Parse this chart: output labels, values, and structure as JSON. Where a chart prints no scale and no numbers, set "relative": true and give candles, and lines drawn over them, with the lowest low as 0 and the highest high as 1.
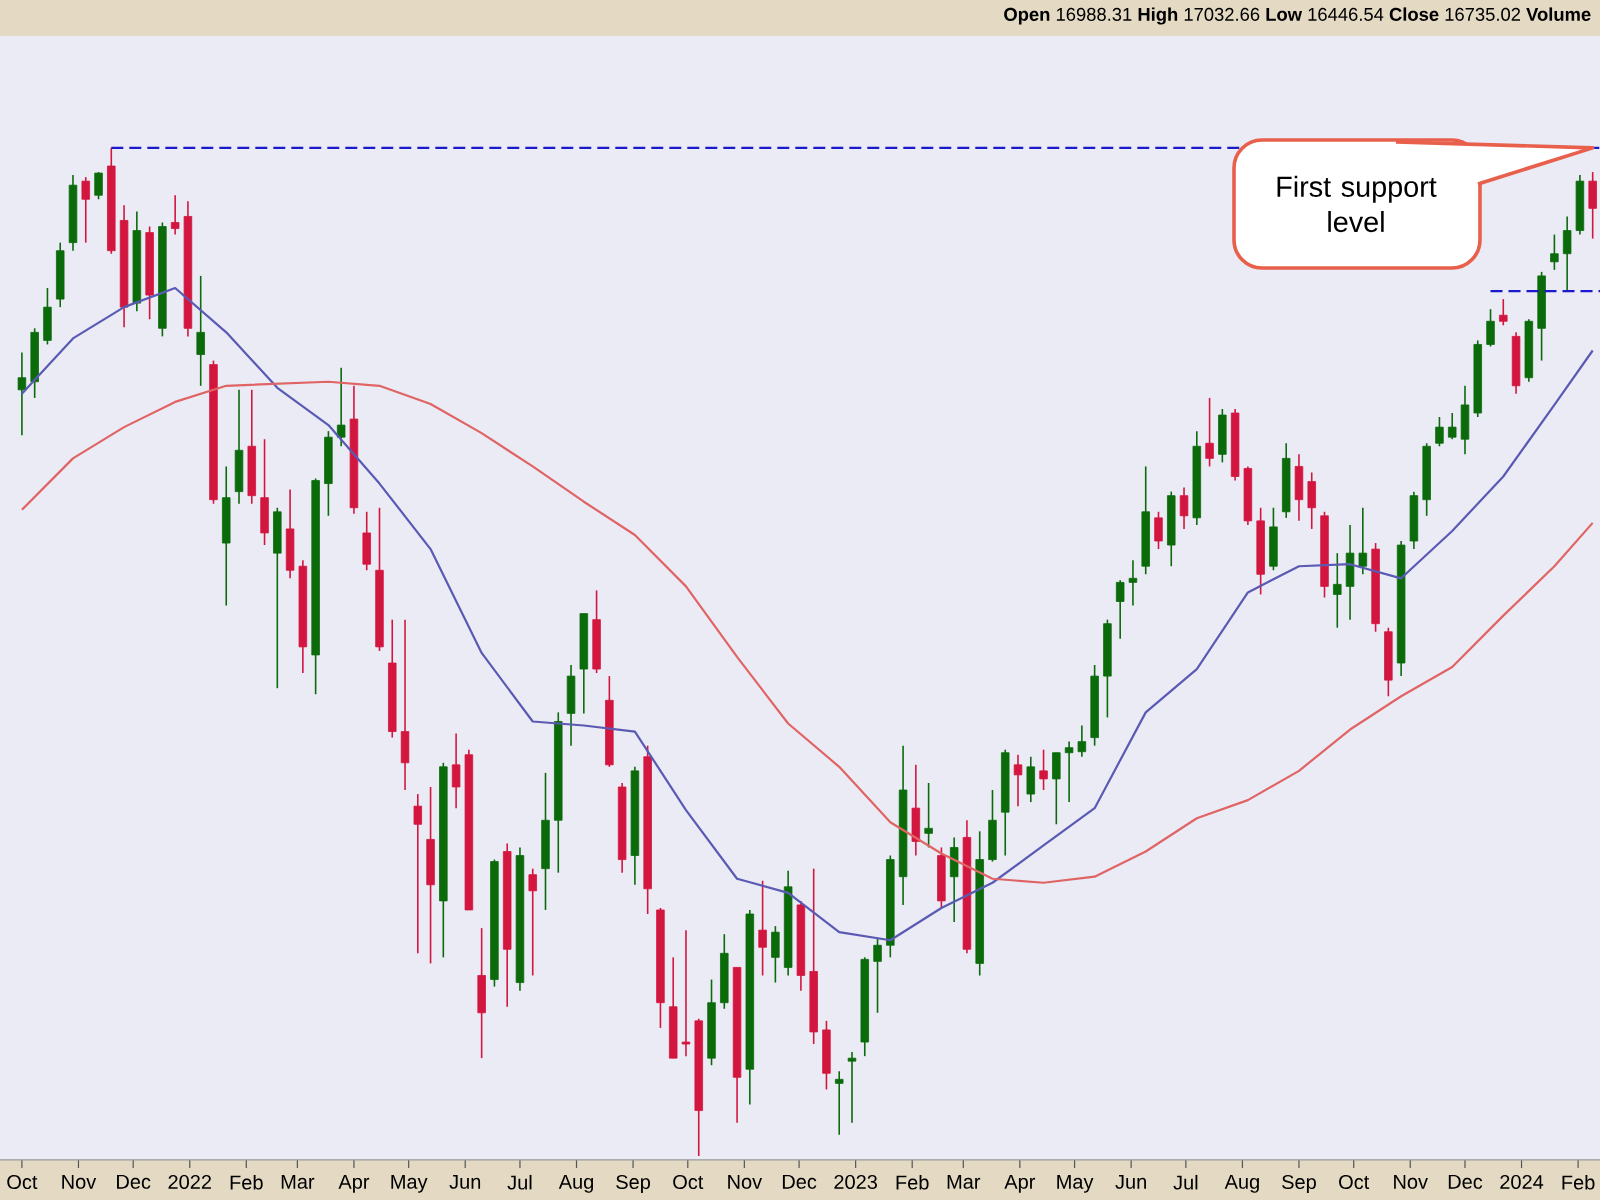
{
  "chart_data": {
    "type": "candlestick",
    "relative": true,
    "tick_labels": "x",
    "xlim": [
      "2021-09-19",
      "2024-02-13"
    ],
    "xticks": [
      {
        "value": "2021-10-01",
        "label": "Oct"
      },
      {
        "value": "2021-11-01",
        "label": "Nov"
      },
      {
        "value": "2021-12-01",
        "label": "Dec"
      },
      {
        "value": "2022-01-01",
        "label": "2022"
      },
      {
        "value": "2022-02-01",
        "label": "Feb"
      },
      {
        "value": "2022-03-01",
        "label": "Mar"
      },
      {
        "value": "2022-04-01",
        "label": "Apr"
      },
      {
        "value": "2022-05-01",
        "label": "May"
      },
      {
        "value": "2022-06-01",
        "label": "Jun"
      },
      {
        "value": "2022-07-01",
        "label": "Jul"
      },
      {
        "value": "2022-08-01",
        "label": "Aug"
      },
      {
        "value": "2022-09-01",
        "label": "Sep"
      },
      {
        "value": "2022-10-01",
        "label": "Oct"
      },
      {
        "value": "2022-11-01",
        "label": "Nov"
      },
      {
        "value": "2022-12-01",
        "label": "Dec"
      },
      {
        "value": "2023-01-01",
        "label": "2023"
      },
      {
        "value": "2023-02-01",
        "label": "Feb"
      },
      {
        "value": "2023-03-01",
        "label": "Mar"
      },
      {
        "value": "2023-04-01",
        "label": "Apr"
      },
      {
        "value": "2023-05-01",
        "label": "May"
      },
      {
        "value": "2023-06-01",
        "label": "Jun"
      },
      {
        "value": "2023-07-01",
        "label": "Jul"
      },
      {
        "value": "2023-08-01",
        "label": "Aug"
      },
      {
        "value": "2023-09-01",
        "label": "Sep"
      },
      {
        "value": "2023-10-01",
        "label": "Oct"
      },
      {
        "value": "2023-11-01",
        "label": "Nov"
      },
      {
        "value": "2023-12-01",
        "label": "Dec"
      },
      {
        "value": "2024-01-01",
        "label": "2024"
      },
      {
        "value": "2024-02-01",
        "label": "Feb"
      }
    ],
    "annotations": [
      "**Open** 16988.31 **High** 17032.66 **Low** 16446.54 **Close** 16735.02 **Volume**",
      {
        "text": "First support level",
        "x": "2024-02-09",
        "y": 1
      }
    ],
    "x": [
      "2021-10-01",
      "2021-10-08",
      "2021-10-15",
      "2021-10-22",
      "2021-10-29",
      "2021-11-05",
      "2021-11-12",
      "2021-11-19",
      "2021-11-26",
      "2021-12-03",
      "2021-12-10",
      "2021-12-17",
      "2021-12-24",
      "2021-12-31",
      "2022-01-07",
      "2022-01-14",
      "2022-01-21",
      "2022-01-28",
      "2022-02-04",
      "2022-02-11",
      "2022-02-18",
      "2022-02-25",
      "2022-03-04",
      "2022-03-11",
      "2022-03-18",
      "2022-03-25",
      "2022-04-01",
      "2022-04-08",
      "2022-04-15",
      "2022-04-22",
      "2022-04-29",
      "2022-05-06",
      "2022-05-13",
      "2022-05-20",
      "2022-05-27",
      "2022-06-03",
      "2022-06-10",
      "2022-06-17",
      "2022-06-24",
      "2022-07-01",
      "2022-07-08",
      "2022-07-15",
      "2022-07-22",
      "2022-07-29",
      "2022-08-05",
      "2022-08-12",
      "2022-08-19",
      "2022-08-26",
      "2022-09-02",
      "2022-09-09",
      "2022-09-16",
      "2022-09-23",
      "2022-09-30",
      "2022-10-07",
      "2022-10-14",
      "2022-10-21",
      "2022-10-28",
      "2022-11-04",
      "2022-11-11",
      "2022-11-18",
      "2022-11-25",
      "2022-12-02",
      "2022-12-09",
      "2022-12-16",
      "2022-12-23",
      "2022-12-30",
      "2023-01-06",
      "2023-01-13",
      "2023-01-20",
      "2023-01-27",
      "2023-02-03",
      "2023-02-10",
      "2023-02-17",
      "2023-02-24",
      "2023-03-03",
      "2023-03-10",
      "2023-03-17",
      "2023-03-24",
      "2023-03-31",
      "2023-04-07",
      "2023-04-14",
      "2023-04-21",
      "2023-04-28",
      "2023-05-05",
      "2023-05-12",
      "2023-05-19",
      "2023-05-26",
      "2023-06-02",
      "2023-06-09",
      "2023-06-16",
      "2023-06-23",
      "2023-06-30",
      "2023-07-07",
      "2023-07-14",
      "2023-07-21",
      "2023-07-28",
      "2023-08-04",
      "2023-08-11",
      "2023-08-18",
      "2023-08-25",
      "2023-09-01",
      "2023-09-08",
      "2023-09-15",
      "2023-09-22",
      "2023-09-29",
      "2023-10-06",
      "2023-10-13",
      "2023-10-20",
      "2023-10-27",
      "2023-11-03",
      "2023-11-10",
      "2023-11-17",
      "2023-11-24",
      "2023-12-01",
      "2023-12-08",
      "2023-12-15",
      "2023-12-22",
      "2023-12-29",
      "2024-01-05",
      "2024-01-12",
      "2024-01-19",
      "2024-01-26",
      "2024-02-02",
      "2024-02-09"
    ],
    "ohlc": [
      [
        0.76,
        0.797,
        0.715,
        0.772
      ],
      [
        0.768,
        0.821,
        0.752,
        0.817
      ],
      [
        0.809,
        0.861,
        0.805,
        0.842
      ],
      [
        0.85,
        0.906,
        0.842,
        0.898
      ],
      [
        0.906,
        0.973,
        0.898,
        0.963
      ],
      [
        0.967,
        0.971,
        0.906,
        0.949
      ],
      [
        0.953,
        0.976,
        0.949,
        0.975
      ],
      [
        0.982,
        1,
        0.895,
        0.898
      ],
      [
        0.928,
        0.943,
        0.822,
        0.842
      ],
      [
        0.846,
        0.937,
        0.838,
        0.918
      ],
      [
        0.916,
        0.922,
        0.83,
        0.854
      ],
      [
        0.821,
        0.926,
        0.813,
        0.922
      ],
      [
        0.926,
        0.953,
        0.914,
        0.92
      ],
      [
        0.932,
        0.947,
        0.813,
        0.821
      ],
      [
        0.795,
        0.873,
        0.764,
        0.817
      ],
      [
        0.785,
        0.789,
        0.647,
        0.651
      ],
      [
        0.608,
        0.684,
        0.546,
        0.653
      ],
      [
        0.659,
        0.76,
        0.647,
        0.7
      ],
      [
        0.704,
        0.76,
        0.647,
        0.655
      ],
      [
        0.653,
        0.711,
        0.606,
        0.618
      ],
      [
        0.598,
        0.643,
        0.464,
        0.639
      ],
      [
        0.622,
        0.661,
        0.573,
        0.581
      ],
      [
        0.585,
        0.591,
        0.479,
        0.505
      ],
      [
        0.497,
        0.672,
        0.458,
        0.67
      ],
      [
        0.667,
        0.719,
        0.635,
        0.713
      ],
      [
        0.713,
        0.782,
        0.704,
        0.725
      ],
      [
        0.731,
        0.764,
        0.637,
        0.643
      ],
      [
        0.618,
        0.639,
        0.581,
        0.587
      ],
      [
        0.581,
        0.643,
        0.501,
        0.505
      ],
      [
        0.489,
        0.532,
        0.415,
        0.421
      ],
      [
        0.421,
        0.532,
        0.363,
        0.39
      ],
      [
        0.347,
        0.359,
        0.201,
        0.329
      ],
      [
        0.314,
        0.366,
        0.191,
        0.269
      ],
      [
        0.253,
        0.39,
        0.197,
        0.386
      ],
      [
        0.388,
        0.419,
        0.345,
        0.366
      ],
      [
        0.398,
        0.403,
        0.244,
        0.244
      ],
      [
        0.179,
        0.226,
        0.097,
        0.142
      ],
      [
        0.175,
        0.294,
        0.168,
        0.292
      ],
      [
        0.302,
        0.31,
        0.148,
        0.205
      ],
      [
        0.172,
        0.306,
        0.164,
        0.298
      ],
      [
        0.279,
        0.285,
        0.179,
        0.263
      ],
      [
        0.285,
        0.38,
        0.244,
        0.333
      ],
      [
        0.333,
        0.44,
        0.281,
        0.431
      ],
      [
        0.439,
        0.487,
        0.407,
        0.476
      ],
      [
        0.483,
        0.538,
        0.439,
        0.538
      ],
      [
        0.532,
        0.561,
        0.479,
        0.483
      ],
      [
        0.452,
        0.476,
        0.386,
        0.388
      ],
      [
        0.366,
        0.37,
        0.281,
        0.294
      ],
      [
        0.298,
        0.386,
        0.269,
        0.382
      ],
      [
        0.396,
        0.407,
        0.24,
        0.265
      ],
      [
        0.244,
        0.246,
        0.127,
        0.152
      ],
      [
        0.148,
        0.197,
        0.097,
        0.097
      ],
      [
        0.113,
        0.224,
        0.099,
        0.111
      ],
      [
        0.134,
        0.136,
        0,
        0.045
      ],
      [
        0.097,
        0.175,
        0.09,
        0.152
      ],
      [
        0.152,
        0.22,
        0.146,
        0.201
      ],
      [
        0.187,
        0.187,
        0.033,
        0.078
      ],
      [
        0.086,
        0.244,
        0.051,
        0.24
      ],
      [
        0.224,
        0.273,
        0.179,
        0.207
      ],
      [
        0.197,
        0.228,
        0.172,
        0.222
      ],
      [
        0.187,
        0.283,
        0.179,
        0.267
      ],
      [
        0.249,
        0.253,
        0.164,
        0.179
      ],
      [
        0.183,
        0.285,
        0.111,
        0.123
      ],
      [
        0.125,
        0.134,
        0.066,
        0.082
      ],
      [
        0.072,
        0.084,
        0.021,
        0.076
      ],
      [
        0.094,
        0.103,
        0.033,
        0.097
      ],
      [
        0.113,
        0.197,
        0.099,
        0.195
      ],
      [
        0.193,
        0.216,
        0.142,
        0.209
      ],
      [
        0.209,
        0.298,
        0.197,
        0.294
      ],
      [
        0.277,
        0.407,
        0.249,
        0.363
      ],
      [
        0.345,
        0.388,
        0.298,
        0.312
      ],
      [
        0.32,
        0.37,
        0.306,
        0.325
      ],
      [
        0.298,
        0.306,
        0.246,
        0.253
      ],
      [
        0.277,
        0.316,
        0.232,
        0.306
      ],
      [
        0.316,
        0.333,
        0.201,
        0.205
      ],
      [
        0.191,
        0.322,
        0.179,
        0.294
      ],
      [
        0.294,
        0.363,
        0.292,
        0.333
      ],
      [
        0.341,
        0.403,
        0.298,
        0.4
      ],
      [
        0.388,
        0.398,
        0.347,
        0.378
      ],
      [
        0.359,
        0.396,
        0.351,
        0.386
      ],
      [
        0.382,
        0.403,
        0.363,
        0.374
      ],
      [
        0.374,
        0.4,
        0.329,
        0.4
      ],
      [
        0.4,
        0.411,
        0.351,
        0.405
      ],
      [
        0.401,
        0.427,
        0.396,
        0.411
      ],
      [
        0.415,
        0.487,
        0.407,
        0.476
      ],
      [
        0.476,
        0.532,
        0.435,
        0.528
      ],
      [
        0.55,
        0.571,
        0.513,
        0.569
      ],
      [
        0.569,
        0.591,
        0.546,
        0.573
      ],
      [
        0.585,
        0.684,
        0.577,
        0.639
      ],
      [
        0.633,
        0.639,
        0.602,
        0.61
      ],
      [
        0.606,
        0.659,
        0.585,
        0.655
      ],
      [
        0.655,
        0.663,
        0.622,
        0.635
      ],
      [
        0.633,
        0.719,
        0.626,
        0.704
      ],
      [
        0.707,
        0.752,
        0.684,
        0.692
      ],
      [
        0.696,
        0.741,
        0.688,
        0.735
      ],
      [
        0.737,
        0.741,
        0.67,
        0.674
      ],
      [
        0.682,
        0.684,
        0.626,
        0.63
      ],
      [
        0.63,
        0.643,
        0.557,
        0.577
      ],
      [
        0.585,
        0.643,
        0.581,
        0.624
      ],
      [
        0.639,
        0.707,
        0.633,
        0.692
      ],
      [
        0.684,
        0.696,
        0.63,
        0.651
      ],
      [
        0.669,
        0.678,
        0.622,
        0.643
      ],
      [
        0.635,
        0.639,
        0.554,
        0.565
      ],
      [
        0.557,
        0.598,
        0.524,
        0.567
      ],
      [
        0.565,
        0.626,
        0.532,
        0.598
      ],
      [
        0.585,
        0.643,
        0.577,
        0.598
      ],
      [
        0.602,
        0.608,
        0.52,
        0.528
      ],
      [
        0.52,
        0.524,
        0.456,
        0.472
      ],
      [
        0.489,
        0.61,
        0.476,
        0.606
      ],
      [
        0.61,
        0.659,
        0.602,
        0.655
      ],
      [
        0.651,
        0.707,
        0.635,
        0.704
      ],
      [
        0.707,
        0.733,
        0.704,
        0.723
      ],
      [
        0.713,
        0.737,
        0.711,
        0.723
      ],
      [
        0.711,
        0.764,
        0.696,
        0.745
      ],
      [
        0.737,
        0.809,
        0.733,
        0.805
      ],
      [
        0.805,
        0.84,
        0.803,
        0.828
      ],
      [
        0.834,
        0.85,
        0.824,
        0.828
      ],
      [
        0.813,
        0.817,
        0.756,
        0.764
      ],
      [
        0.772,
        0.83,
        0.768,
        0.828
      ],
      [
        0.821,
        0.877,
        0.789,
        0.873
      ],
      [
        0.887,
        0.914,
        0.879,
        0.895
      ],
      [
        0.895,
        0.932,
        0.858,
        0.918
      ],
      [
        0.918,
        0.973,
        0.914,
        0.967
      ],
      [
        0.967,
        0.976,
        0.91,
        0.94
      ]
    ],
    "series": [
      {
        "type": "line",
        "color": "#5a5ab4",
        "x": [
          "2021-10-01",
          "2021-10-29",
          "2021-11-26",
          "2021-12-24",
          "2022-01-21",
          "2022-02-18",
          "2022-03-18",
          "2022-04-15",
          "2022-05-13",
          "2022-06-10",
          "2022-07-08",
          "2022-08-05",
          "2022-09-02",
          "2022-09-30",
          "2022-10-28",
          "2022-11-25",
          "2022-12-23",
          "2023-01-20",
          "2023-02-17",
          "2023-03-17",
          "2023-04-14",
          "2023-05-12",
          "2023-06-09",
          "2023-07-07",
          "2023-08-04",
          "2023-09-01",
          "2023-09-29",
          "2023-10-27",
          "2023-11-24",
          "2023-12-22",
          "2024-01-19",
          "2024-02-09"
        ],
        "values": [
          0.756,
          0.811,
          0.842,
          0.861,
          0.817,
          0.762,
          0.725,
          0.667,
          0.602,
          0.499,
          0.431,
          0.427,
          0.421,
          0.343,
          0.275,
          0.261,
          0.222,
          0.214,
          0.246,
          0.271,
          0.308,
          0.345,
          0.44,
          0.483,
          0.559,
          0.585,
          0.587,
          0.573,
          0.62,
          0.674,
          0.745,
          0.799
        ]
      },
      {
        "type": "line",
        "color": "#e06464",
        "x": [
          "2021-10-01",
          "2021-10-29",
          "2021-11-26",
          "2021-12-24",
          "2022-01-21",
          "2022-02-18",
          "2022-03-18",
          "2022-04-15",
          "2022-05-13",
          "2022-06-10",
          "2022-07-08",
          "2022-08-05",
          "2022-09-02",
          "2022-09-30",
          "2022-10-28",
          "2022-11-25",
          "2022-12-23",
          "2023-01-20",
          "2023-02-17",
          "2023-03-17",
          "2023-04-14",
          "2023-05-12",
          "2023-06-09",
          "2023-07-07",
          "2023-08-04",
          "2023-09-01",
          "2023-09-29",
          "2023-10-27",
          "2023-11-24",
          "2023-12-22",
          "2024-01-19",
          "2024-02-09"
        ],
        "values": [
          0.641,
          0.692,
          0.723,
          0.748,
          0.764,
          0.766,
          0.768,
          0.764,
          0.746,
          0.717,
          0.684,
          0.649,
          0.616,
          0.565,
          0.495,
          0.429,
          0.386,
          0.331,
          0.3,
          0.275,
          0.271,
          0.277,
          0.302,
          0.335,
          0.353,
          0.382,
          0.423,
          0.456,
          0.485,
          0.536,
          0.585,
          0.628
        ]
      },
      {
        "type": "line",
        "color": "#1a1acc",
        "line_style": "dashed",
        "x": [
          "2021-11-19",
          "2024-02-13"
        ],
        "values": [
          1,
          1
        ]
      },
      {
        "type": "line",
        "color": "#1a1acc",
        "line_style": "dashed",
        "x": [
          "2023-12-15",
          "2024-02-13"
        ],
        "values": [
          0.858,
          0.858
        ]
      }
    ]
  }
}
